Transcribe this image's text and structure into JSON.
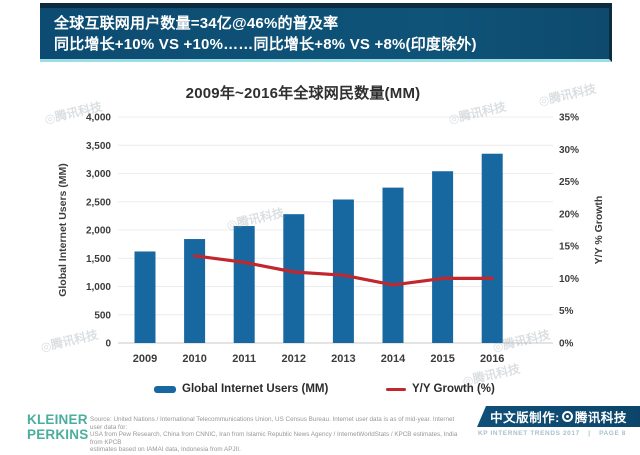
{
  "banner": {
    "line1": "全球互联网用户数量=34亿@46%的普及率",
    "line2": "同比增长+10% VS +10%……同比增长+8% VS +8%(印度除外)"
  },
  "chart_data": {
    "type": "bar",
    "title": "2009年~2016年全球网民数量(MM)",
    "categories": [
      "2009",
      "2010",
      "2011",
      "2012",
      "2013",
      "2014",
      "2015",
      "2016"
    ],
    "series": [
      {
        "name": "Global Internet Users (MM)",
        "type": "bar",
        "axis": "left",
        "color": "#1768A0",
        "values": [
          1620,
          1840,
          2070,
          2280,
          2540,
          2750,
          3040,
          3350
        ]
      },
      {
        "name": "Y/Y Growth (%)",
        "type": "line",
        "axis": "right",
        "color": "#C1272D",
        "values": [
          null,
          13.5,
          12.5,
          11,
          10.5,
          9,
          10,
          10
        ]
      }
    ],
    "left_axis": {
      "label": "Global Internet Users (MM)",
      "min": 0,
      "max": 4000,
      "step": 500
    },
    "right_axis": {
      "label": "Y/Y % Growth",
      "min": 0,
      "max": 35,
      "step": 5,
      "unit": "%"
    },
    "grid": true,
    "legend_position": "bottom"
  },
  "legend": {
    "users_label": "Global Internet Users (MM)",
    "growth_label": "Y/Y Growth (%)"
  },
  "logo": {
    "line1": "KLEINER",
    "line2": "PERKINS"
  },
  "source": {
    "lines": [
      "Source: United Nations / International Telecommunications Union, US Census Bureau. Internet user data is as of mid-year. Internet user data for:",
      "USA from Pew Research, China from CNNIC, Iran from Islamic Republic News Agency / InternetWorldStats / KPCB estimates, India from KPCB",
      "estimates based on IAMAI data, Indonesia from APJII."
    ]
  },
  "tencent_banner": {
    "prefix": "中文版制作:",
    "brand": "腾讯科技"
  },
  "footer_note": {
    "left": "KP INTERNET TRENDS 2017",
    "sep": "|",
    "right": "PAGE 8"
  },
  "watermark_text": "◎腾讯科技",
  "colors": {
    "banner_blue": "#0F5378",
    "banner_dark": "#0D2B3F",
    "glow_cyan": "#9BDFE4",
    "bar_blue": "#1768A0",
    "line_red": "#C1272D",
    "logo_teal": "#4AAE9E"
  }
}
